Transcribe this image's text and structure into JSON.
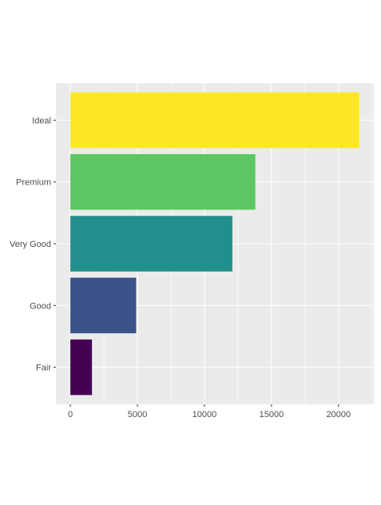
{
  "chart_data": {
    "type": "bar",
    "orientation": "horizontal",
    "categories": [
      "Fair",
      "Good",
      "Very Good",
      "Premium",
      "Ideal"
    ],
    "values": [
      1610,
      4906,
      12082,
      13791,
      21551
    ],
    "colors": [
      "#440154",
      "#3B528B",
      "#21908C",
      "#5DC863",
      "#FDE725"
    ],
    "x_ticks": [
      0,
      5000,
      10000,
      15000,
      20000
    ],
    "xlim": [
      -1077.55,
      22628.55
    ],
    "title": "",
    "xlabel": "",
    "ylabel": "",
    "grid": true,
    "legend": "none",
    "panel_background": "#EBEBEB",
    "grid_color": "#FFFFFF"
  }
}
